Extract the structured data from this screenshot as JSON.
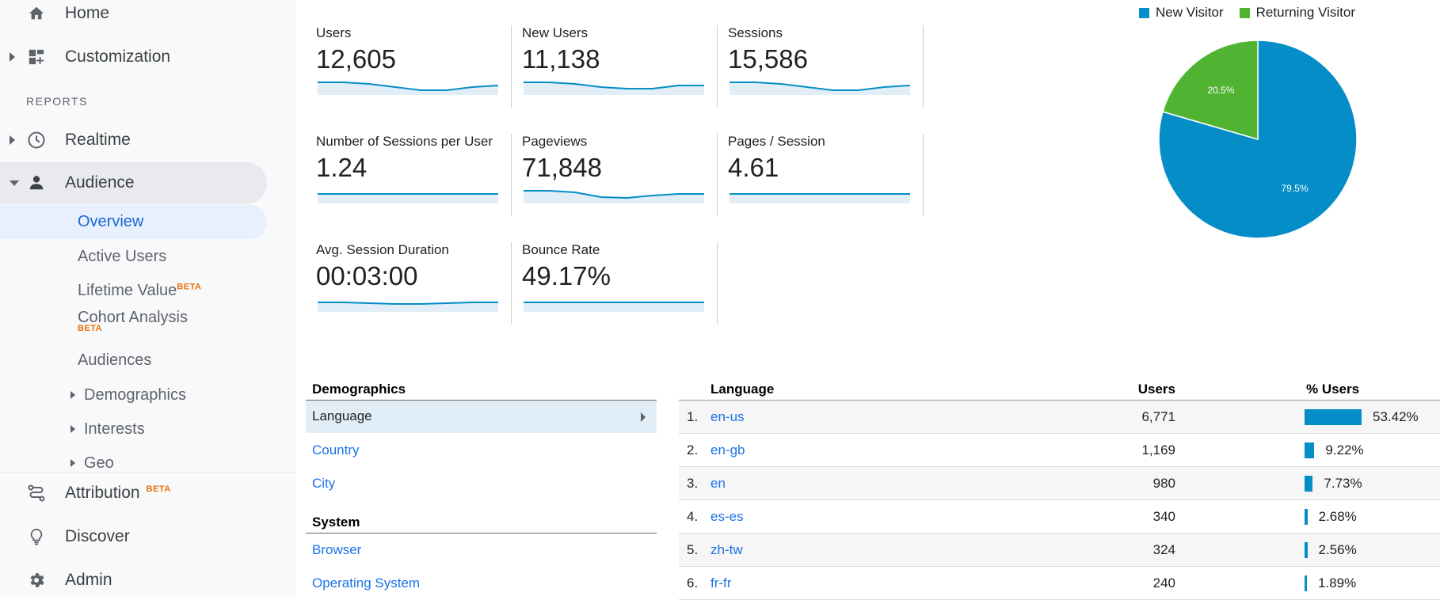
{
  "sidebar": {
    "home": "Home",
    "customization": "Customization",
    "reports_header": "REPORTS",
    "realtime": "Realtime",
    "audience": "Audience",
    "overview": "Overview",
    "active_users": "Active Users",
    "lifetime_value": "Lifetime Value",
    "cohort_analysis": "Cohort Analysis",
    "audiences": "Audiences",
    "demographics": "Demographics",
    "interests": "Interests",
    "geo": "Geo",
    "attribution": "Attribution",
    "discover": "Discover",
    "admin": "Admin",
    "beta": "BETA"
  },
  "metrics": [
    {
      "label": "Users",
      "value": "12,605"
    },
    {
      "label": "New Users",
      "value": "11,138"
    },
    {
      "label": "Sessions",
      "value": "15,586"
    },
    {
      "label": "Number of Sessions per User",
      "value": "1.24"
    },
    {
      "label": "Pageviews",
      "value": "71,848"
    },
    {
      "label": "Pages / Session",
      "value": "4.61"
    },
    {
      "label": "Avg. Session Duration",
      "value": "00:03:00"
    },
    {
      "label": "Bounce Rate",
      "value": "49.17%"
    }
  ],
  "chart_data": {
    "type": "pie",
    "labels": [
      "New Visitor",
      "Returning Visitor"
    ],
    "values": [
      79.5,
      20.5
    ],
    "value_labels": [
      "79.5%",
      "20.5%"
    ],
    "colors": [
      "#058dc7",
      "#50b432"
    ],
    "legend": "top"
  },
  "demographics": {
    "header": "Demographics",
    "language": "Language",
    "country": "Country",
    "city": "City",
    "system_header": "System",
    "browser": "Browser",
    "os": "Operating System"
  },
  "table": {
    "col_language": "Language",
    "col_users": "Users",
    "col_pct_users": "% Users",
    "rows": [
      {
        "num": "1.",
        "lang": "en-us",
        "users": "6,771",
        "pct": "53.42%",
        "share": 53.42
      },
      {
        "num": "2.",
        "lang": "en-gb",
        "users": "1,169",
        "pct": "9.22%",
        "share": 9.22
      },
      {
        "num": "3.",
        "lang": "en",
        "users": "980",
        "pct": "7.73%",
        "share": 7.73
      },
      {
        "num": "4.",
        "lang": "es-es",
        "users": "340",
        "pct": "2.68%",
        "share": 2.68
      },
      {
        "num": "5.",
        "lang": "zh-tw",
        "users": "324",
        "pct": "2.56%",
        "share": 2.56
      },
      {
        "num": "6.",
        "lang": "fr-fr",
        "users": "240",
        "pct": "1.89%",
        "share": 1.89
      }
    ]
  }
}
